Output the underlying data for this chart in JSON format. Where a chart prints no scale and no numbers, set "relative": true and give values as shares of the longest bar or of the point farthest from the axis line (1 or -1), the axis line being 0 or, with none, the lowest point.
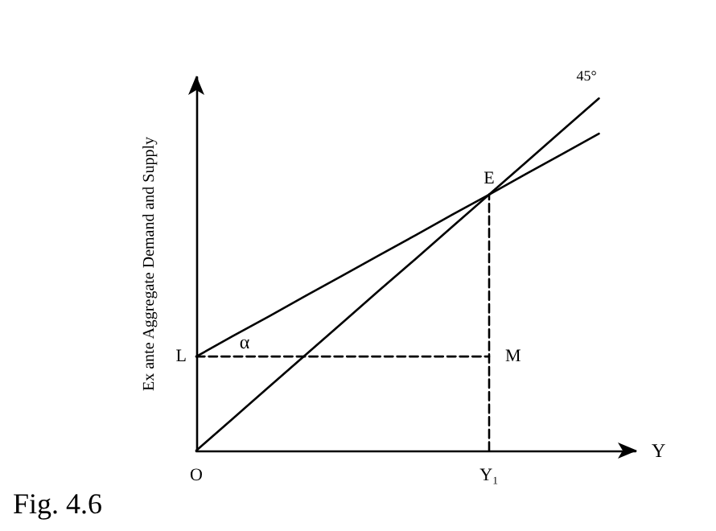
{
  "chart_data": {
    "type": "line",
    "relative": true,
    "xlabel": "Y",
    "ylabel": "Ex ante Aggregate Demand and Supply",
    "marker": "none",
    "categories": [
      "O",
      null,
      null,
      null,
      null,
      null,
      null,
      null,
      "Y₁",
      null,
      null,
      null
    ],
    "series": [
      {
        "name": "45°",
        "color": "#000000",
        "values": [
          0,
          0.091,
          0.182,
          0.273,
          0.364,
          0.455,
          0.545,
          0.636,
          0.727,
          0.818,
          0.909,
          1
        ]
      },
      {
        "color": "#000000",
        "values": [
          0.267,
          0.325,
          0.382,
          0.44,
          0.497,
          0.555,
          0.612,
          0.67,
          0.727,
          0.785,
          0.842,
          0.9
        ]
      },
      {
        "color": "#000000",
        "line_style": "dashed",
        "values": [
          0.267,
          0.267,
          0.267,
          0.267,
          0.267,
          0.267,
          0.267,
          0.267,
          0.267,
          null,
          null,
          null
        ]
      },
      {
        "color": "#000000",
        "line_style": "dashed",
        "x": [
          "Y₁",
          "Y₁"
        ],
        "values": [
          0,
          0.727
        ]
      }
    ],
    "annotations": [
      {
        "text": "E",
        "x": "Y₁",
        "y": 0.727
      },
      "L",
      {
        "text": "M",
        "x": "Y₁",
        "y": 0.267
      },
      "α",
      "Fig. 4.6"
    ]
  }
}
